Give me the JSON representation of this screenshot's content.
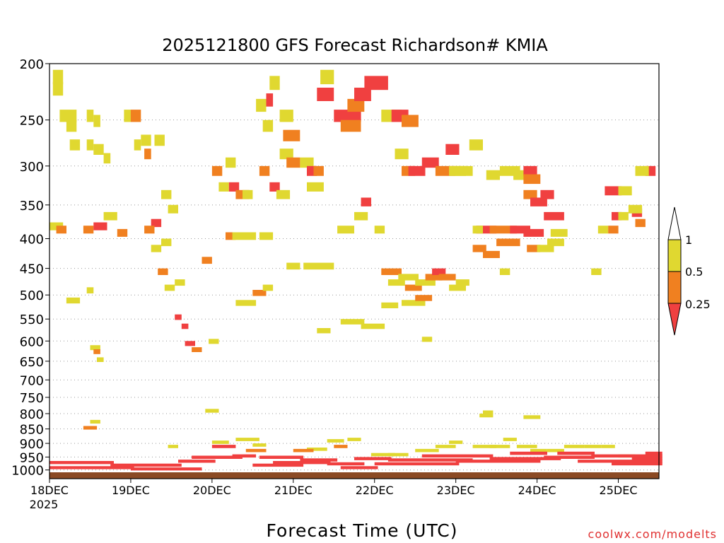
{
  "chart_data": {
    "type": "heatmap",
    "title": "2025121800 GFS Forecast Richardson# KMIA",
    "xlabel": "Forecast Time (UTC)",
    "ylabel": "",
    "credit": "coolwx.com/modelts",
    "x_ticks": [
      {
        "label": "18DEC",
        "sublabel": "2025",
        "hour": 0
      },
      {
        "label": "19DEC",
        "sublabel": "",
        "hour": 24
      },
      {
        "label": "20DEC",
        "sublabel": "",
        "hour": 48
      },
      {
        "label": "21DEC",
        "sublabel": "",
        "hour": 72
      },
      {
        "label": "22DEC",
        "sublabel": "",
        "hour": 96
      },
      {
        "label": "23DEC",
        "sublabel": "",
        "hour": 120
      },
      {
        "label": "24DEC",
        "sublabel": "",
        "hour": 144
      },
      {
        "label": "25DEC",
        "sublabel": "",
        "hour": 168
      }
    ],
    "xlim_hours": [
      0,
      180
    ],
    "y_ticks": [
      200,
      250,
      300,
      350,
      400,
      450,
      500,
      550,
      600,
      650,
      700,
      750,
      800,
      850,
      900,
      950,
      1000
    ],
    "ylim_mb": [
      200,
      1035
    ],
    "grid": "dotted horizontal at each pressure tick",
    "legend": {
      "placement": "right",
      "labels": [
        "1",
        "0.5",
        "0.25"
      ],
      "colors": {
        "above_1": "#ffffff",
        "0.5_to_1": "#e0d830",
        "0.25_to_0.5": "#f08020",
        "below_0.25": "#f04040"
      }
    },
    "colors": {
      "yellow": "#e0d830",
      "orange": "#f08020",
      "red": "#f04040",
      "ground": "#8b4a24"
    },
    "cells_note_time_hours_pressure_mb": "",
    "cells": [
      [
        1,
        205,
        2,
        1,
        "y"
      ],
      [
        1,
        215,
        2,
        1,
        "y"
      ],
      [
        3,
        240,
        4,
        1,
        "y"
      ],
      [
        5,
        250,
        2,
        1,
        "y"
      ],
      [
        6,
        270,
        2,
        1,
        "y"
      ],
      [
        11,
        240,
        1,
        1,
        "y"
      ],
      [
        13,
        245,
        1,
        1,
        "y"
      ],
      [
        0,
        375,
        3,
        1,
        "y"
      ],
      [
        2,
        380,
        2,
        1,
        "o"
      ],
      [
        10,
        380,
        2,
        1,
        "o"
      ],
      [
        13,
        375,
        3,
        1,
        "r"
      ],
      [
        16,
        360,
        3,
        1,
        "y"
      ],
      [
        20,
        385,
        2,
        1,
        "o"
      ],
      [
        11,
        270,
        1,
        1,
        "y"
      ],
      [
        13,
        275,
        2,
        1,
        "y"
      ],
      [
        16,
        285,
        1,
        1,
        "y"
      ],
      [
        22,
        240,
        1,
        1,
        "y"
      ],
      [
        24,
        240,
        2,
        1,
        "o"
      ],
      [
        25,
        270,
        1,
        1,
        "y"
      ],
      [
        27,
        265,
        2,
        1,
        "y"
      ],
      [
        28,
        280,
        1,
        1,
        "o"
      ],
      [
        31,
        265,
        2,
        1,
        "y"
      ],
      [
        30,
        370,
        2,
        1,
        "r"
      ],
      [
        28,
        380,
        2,
        1,
        "o"
      ],
      [
        33,
        330,
        2,
        1,
        "y"
      ],
      [
        35,
        350,
        2,
        1,
        "y"
      ],
      [
        30,
        410,
        2,
        1,
        "y"
      ],
      [
        33,
        400,
        2,
        1,
        "y"
      ],
      [
        32,
        450,
        2,
        1,
        "o"
      ],
      [
        34,
        480,
        2,
        1,
        "y"
      ],
      [
        37,
        470,
        2,
        1,
        "y"
      ],
      [
        37,
        540,
        1,
        1,
        "r"
      ],
      [
        39,
        560,
        1,
        1,
        "r"
      ],
      [
        40,
        600,
        2,
        1,
        "r"
      ],
      [
        42,
        615,
        2,
        1,
        "o"
      ],
      [
        12,
        610,
        2,
        1,
        "y"
      ],
      [
        13,
        620,
        1,
        1,
        "o"
      ],
      [
        14,
        640,
        1,
        1,
        "y"
      ],
      [
        5,
        505,
        3,
        1,
        "y"
      ],
      [
        11,
        485,
        1,
        1,
        "y"
      ],
      [
        45,
        430,
        2,
        1,
        "o"
      ],
      [
        48,
        300,
        2,
        1,
        "o"
      ],
      [
        50,
        320,
        2,
        1,
        "y"
      ],
      [
        52,
        290,
        2,
        1,
        "y"
      ],
      [
        53,
        320,
        2,
        1,
        "r"
      ],
      [
        55,
        330,
        3,
        1,
        "o"
      ],
      [
        52,
        390,
        2,
        1,
        "o"
      ],
      [
        54,
        390,
        6,
        1,
        "y"
      ],
      [
        57,
        330,
        2,
        1,
        "y"
      ],
      [
        47,
        595,
        2,
        1,
        "y"
      ],
      [
        55,
        510,
        5,
        1,
        "y"
      ],
      [
        60,
        490,
        3,
        1,
        "o"
      ],
      [
        63,
        480,
        2,
        1,
        "y"
      ],
      [
        62,
        300,
        2,
        1,
        "o"
      ],
      [
        65,
        320,
        2,
        1,
        "r"
      ],
      [
        67,
        330,
        3,
        1,
        "y"
      ],
      [
        68,
        280,
        3,
        1,
        "y"
      ],
      [
        70,
        290,
        3,
        1,
        "o"
      ],
      [
        61,
        230,
        2,
        1,
        "y"
      ],
      [
        63,
        250,
        2,
        1,
        "y"
      ],
      [
        64,
        225,
        1,
        1,
        "r"
      ],
      [
        65,
        210,
        2,
        1,
        "y"
      ],
      [
        68,
        240,
        3,
        1,
        "y"
      ],
      [
        69,
        260,
        4,
        1,
        "o"
      ],
      [
        74,
        290,
        3,
        1,
        "y"
      ],
      [
        76,
        300,
        2,
        1,
        "r"
      ],
      [
        78,
        300,
        2,
        1,
        "o"
      ],
      [
        62,
        390,
        3,
        1,
        "y"
      ],
      [
        70,
        440,
        3,
        1,
        "y"
      ],
      [
        75,
        440,
        8,
        1,
        "y"
      ],
      [
        76,
        320,
        4,
        1,
        "y"
      ],
      [
        79,
        220,
        4,
        1,
        "r"
      ],
      [
        80,
        205,
        3,
        1,
        "y"
      ],
      [
        84,
        240,
        7,
        1,
        "r"
      ],
      [
        86,
        250,
        5,
        1,
        "o"
      ],
      [
        88,
        230,
        4,
        1,
        "o"
      ],
      [
        90,
        220,
        4,
        1,
        "r"
      ],
      [
        93,
        210,
        6,
        1,
        "r"
      ],
      [
        98,
        240,
        5,
        1,
        "y"
      ],
      [
        101,
        240,
        4,
        1,
        "r"
      ],
      [
        104,
        245,
        4,
        1,
        "o"
      ],
      [
        102,
        280,
        3,
        1,
        "y"
      ],
      [
        104,
        300,
        3,
        1,
        "o"
      ],
      [
        106,
        300,
        4,
        1,
        "r"
      ],
      [
        110,
        290,
        4,
        1,
        "r"
      ],
      [
        114,
        300,
        5,
        1,
        "o"
      ],
      [
        117,
        275,
        3,
        1,
        "r"
      ],
      [
        118,
        300,
        4,
        1,
        "y"
      ],
      [
        120,
        300,
        4,
        1,
        "y"
      ],
      [
        124,
        270,
        3,
        1,
        "y"
      ],
      [
        90,
        360,
        3,
        1,
        "y"
      ],
      [
        85,
        380,
        4,
        1,
        "y"
      ],
      [
        92,
        340,
        2,
        1,
        "r"
      ],
      [
        96,
        380,
        2,
        1,
        "y"
      ],
      [
        98,
        450,
        5,
        1,
        "o"
      ],
      [
        100,
        470,
        4,
        1,
        "y"
      ],
      [
        103,
        460,
        5,
        1,
        "y"
      ],
      [
        105,
        480,
        4,
        1,
        "o"
      ],
      [
        108,
        470,
        5,
        1,
        "y"
      ],
      [
        111,
        460,
        4,
        1,
        "o"
      ],
      [
        113,
        450,
        3,
        1,
        "r"
      ],
      [
        115,
        460,
        4,
        1,
        "o"
      ],
      [
        118,
        480,
        4,
        1,
        "y"
      ],
      [
        120,
        470,
        3,
        1,
        "y"
      ],
      [
        98,
        515,
        4,
        1,
        "y"
      ],
      [
        104,
        510,
        6,
        1,
        "y"
      ],
      [
        108,
        500,
        4,
        1,
        "o"
      ],
      [
        86,
        550,
        6,
        1,
        "y"
      ],
      [
        92,
        560,
        6,
        1,
        "y"
      ],
      [
        79,
        570,
        3,
        1,
        "y"
      ],
      [
        110,
        590,
        2,
        1,
        "y"
      ],
      [
        129,
        305,
        3,
        1,
        "y"
      ],
      [
        133,
        300,
        5,
        1,
        "y"
      ],
      [
        137,
        305,
        5,
        1,
        "y"
      ],
      [
        140,
        300,
        3,
        1,
        "r"
      ],
      [
        140,
        310,
        4,
        1,
        "o"
      ],
      [
        140,
        330,
        3,
        1,
        "o"
      ],
      [
        142,
        340,
        4,
        1,
        "r"
      ],
      [
        145,
        330,
        3,
        1,
        "r"
      ],
      [
        146,
        360,
        5,
        1,
        "r"
      ],
      [
        126,
        380,
        5,
        1,
        "r"
      ],
      [
        130,
        380,
        7,
        1,
        "o"
      ],
      [
        132,
        400,
        6,
        1,
        "o"
      ],
      [
        136,
        380,
        5,
        1,
        "r"
      ],
      [
        140,
        385,
        5,
        1,
        "r"
      ],
      [
        141,
        410,
        3,
        1,
        "o"
      ],
      [
        144,
        410,
        4,
        1,
        "y"
      ],
      [
        147,
        400,
        4,
        1,
        "y"
      ],
      [
        148,
        385,
        4,
        1,
        "y"
      ],
      [
        125,
        380,
        2,
        1,
        "y"
      ],
      [
        125,
        410,
        3,
        1,
        "o"
      ],
      [
        128,
        420,
        4,
        1,
        "o"
      ],
      [
        133,
        450,
        2,
        1,
        "y"
      ],
      [
        162,
        380,
        2,
        1,
        "y"
      ],
      [
        165,
        380,
        2,
        1,
        "o"
      ],
      [
        166,
        360,
        2,
        1,
        "r"
      ],
      [
        168,
        360,
        2,
        1,
        "y"
      ],
      [
        164,
        325,
        4,
        1,
        "r"
      ],
      [
        168,
        325,
        3,
        1,
        "y"
      ],
      [
        172,
        355,
        2,
        1,
        "r"
      ],
      [
        173,
        370,
        2,
        1,
        "o"
      ],
      [
        171,
        350,
        3,
        1,
        "y"
      ],
      [
        176,
        300,
        2,
        1,
        "r"
      ],
      [
        173,
        300,
        3,
        1,
        "y"
      ],
      [
        160,
        450,
        2,
        1,
        "y"
      ],
      [
        128,
        790,
        2,
        1,
        "y"
      ],
      [
        127,
        800,
        3,
        1,
        "y"
      ],
      [
        140,
        805,
        4,
        1,
        "y"
      ],
      [
        10,
        840,
        3,
        1,
        "o"
      ],
      [
        12,
        820,
        2,
        1,
        "y"
      ],
      [
        46,
        785,
        3,
        1,
        "y"
      ],
      [
        35,
        905,
        2,
        1,
        "y"
      ],
      [
        48,
        890,
        4,
        1,
        "y"
      ],
      [
        55,
        880,
        6,
        1,
        "y"
      ],
      [
        60,
        900,
        3,
        1,
        "y"
      ],
      [
        58,
        920,
        5,
        1,
        "o"
      ],
      [
        76,
        915,
        5,
        1,
        "y"
      ],
      [
        82,
        885,
        4,
        1,
        "y"
      ],
      [
        88,
        880,
        3,
        1,
        "y"
      ],
      [
        84,
        905,
        3,
        1,
        "o"
      ],
      [
        72,
        920,
        5,
        1,
        "o"
      ],
      [
        95,
        935,
        6,
        1,
        "y"
      ],
      [
        100,
        935,
        5,
        1,
        "y"
      ],
      [
        108,
        920,
        6,
        1,
        "y"
      ],
      [
        114,
        905,
        5,
        1,
        "y"
      ],
      [
        118,
        890,
        3,
        1,
        "y"
      ],
      [
        125,
        905,
        6,
        1,
        "y"
      ],
      [
        130,
        905,
        5,
        1,
        "y"
      ],
      [
        134,
        880,
        3,
        1,
        "y"
      ],
      [
        138,
        905,
        5,
        1,
        "y"
      ],
      [
        142,
        920,
        4,
        1,
        "y"
      ],
      [
        147,
        920,
        4,
        1,
        "y"
      ],
      [
        152,
        905,
        5,
        1,
        "y"
      ],
      [
        158,
        905,
        4,
        1,
        "y"
      ],
      [
        163,
        905,
        3,
        1,
        "y"
      ],
      [
        168,
        940,
        4,
        1,
        "y"
      ],
      [
        0,
        965,
        18,
        1,
        "r"
      ],
      [
        0,
        985,
        24,
        1,
        "r"
      ],
      [
        18,
        975,
        20,
        1,
        "r"
      ],
      [
        24,
        990,
        20,
        1,
        "r"
      ],
      [
        38,
        960,
        10,
        1,
        "r"
      ],
      [
        42,
        945,
        14,
        1,
        "r"
      ],
      [
        48,
        905,
        6,
        1,
        "r"
      ],
      [
        54,
        940,
        6,
        1,
        "r"
      ],
      [
        60,
        975,
        14,
        1,
        "r"
      ],
      [
        62,
        945,
        12,
        1,
        "r"
      ],
      [
        66,
        965,
        16,
        1,
        "r"
      ],
      [
        74,
        955,
        10,
        1,
        "r"
      ],
      [
        82,
        970,
        10,
        1,
        "r"
      ],
      [
        86,
        985,
        10,
        1,
        "r"
      ],
      [
        90,
        950,
        10,
        1,
        "r"
      ],
      [
        96,
        970,
        24,
        1,
        "r"
      ],
      [
        100,
        955,
        24,
        1,
        "r"
      ],
      [
        110,
        940,
        20,
        1,
        "r"
      ],
      [
        120,
        960,
        24,
        1,
        "r"
      ],
      [
        130,
        950,
        20,
        1,
        "r"
      ],
      [
        136,
        930,
        10,
        1,
        "r"
      ],
      [
        146,
        945,
        14,
        1,
        "r"
      ],
      [
        150,
        930,
        10,
        1,
        "r"
      ],
      [
        156,
        960,
        24,
        1,
        "r"
      ],
      [
        160,
        940,
        20,
        1,
        "r"
      ],
      [
        166,
        970,
        14,
        1,
        "r"
      ],
      [
        172,
        950,
        8,
        1,
        "r"
      ],
      [
        176,
        930,
        4,
        1,
        "r"
      ]
    ]
  }
}
